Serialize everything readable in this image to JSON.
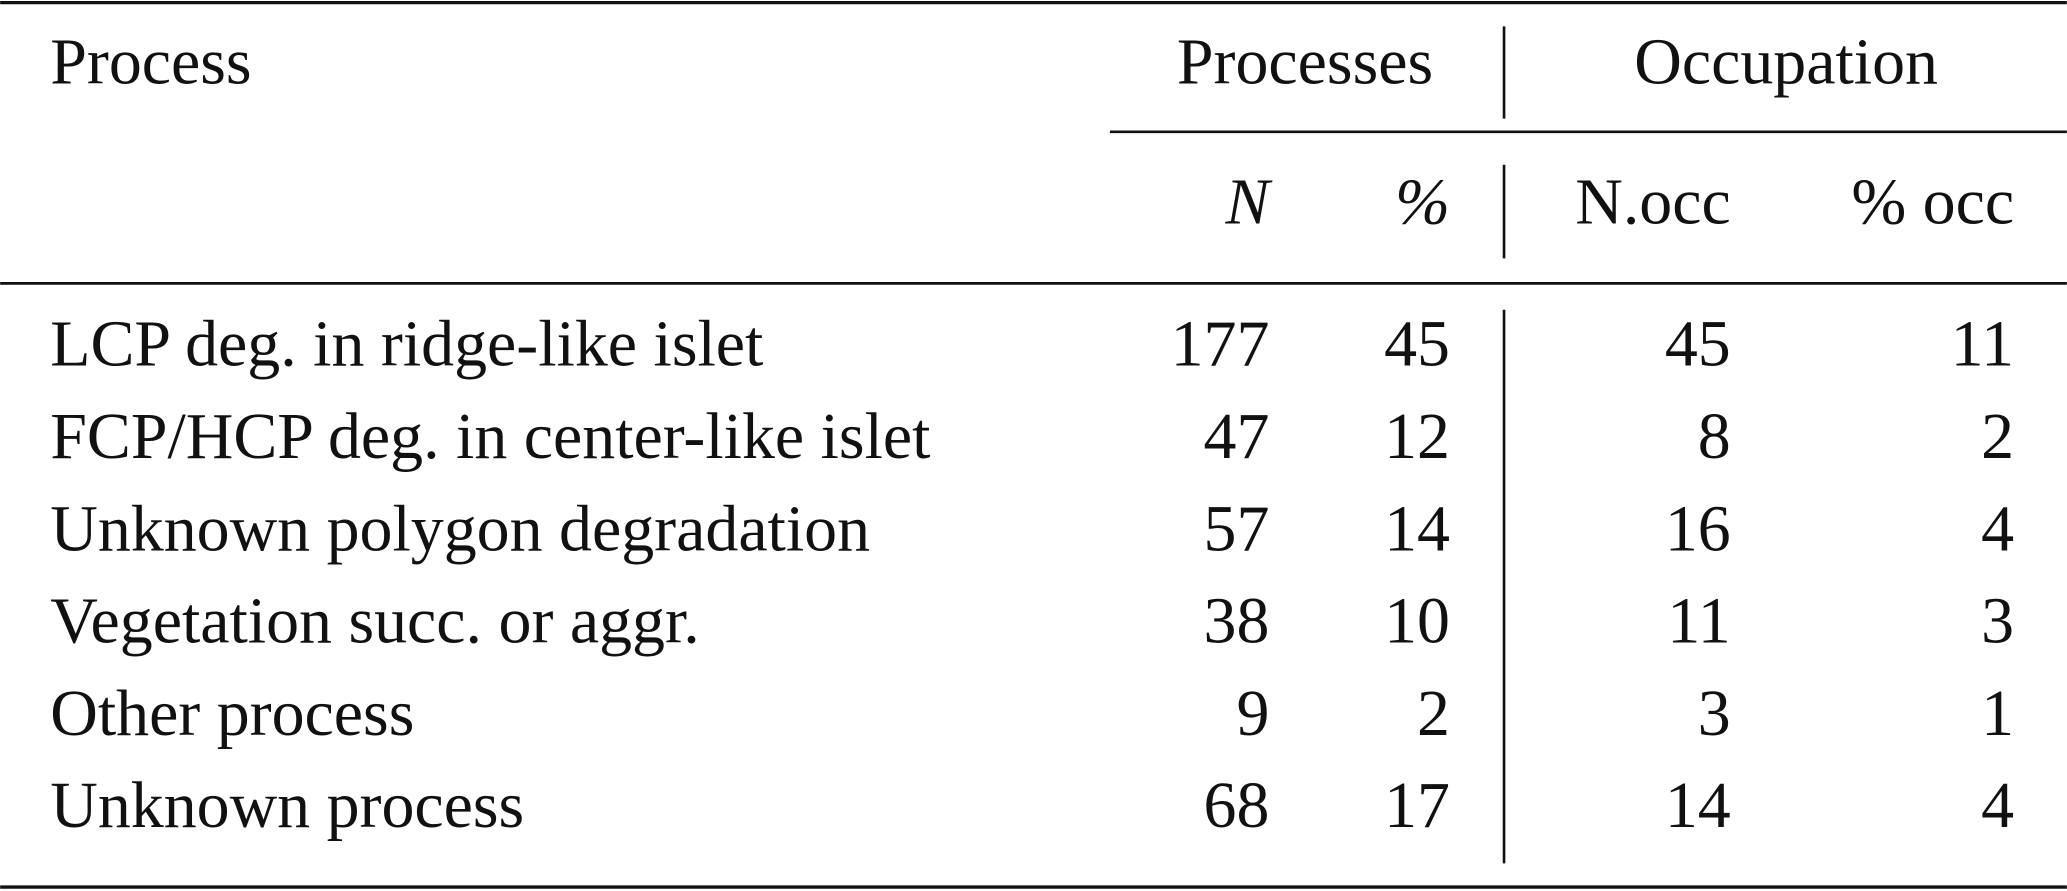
{
  "table": {
    "header": {
      "process": "Process",
      "groups": [
        "Processes",
        "Occupation"
      ],
      "columns": [
        "N",
        "%",
        "N.occ",
        "% occ"
      ]
    },
    "rows": [
      [
        "LCP deg. in ridge-like islet",
        177,
        45,
        45,
        11
      ],
      [
        "FCP/HCP deg. in center-like islet",
        47,
        12,
        8,
        2
      ],
      [
        "Unknown polygon degradation",
        57,
        14,
        16,
        4
      ],
      [
        "Vegetation succ. or aggr.",
        38,
        10,
        11,
        3
      ],
      [
        "Other process",
        9,
        2,
        3,
        1
      ],
      [
        "Unknown process",
        68,
        17,
        14,
        4
      ]
    ]
  }
}
